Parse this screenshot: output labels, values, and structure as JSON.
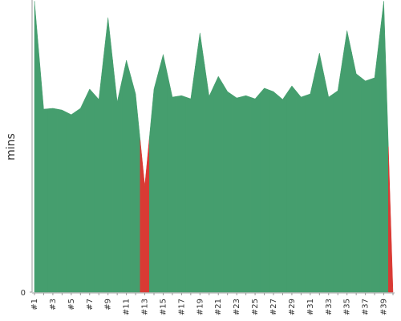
{
  "chart_data": {
    "type": "area",
    "y_label": "mins",
    "categories": [
      "#1",
      null,
      "#3",
      null,
      "#5",
      null,
      "#7",
      null,
      "#9",
      null,
      "#11",
      null,
      "#13",
      null,
      "#15",
      null,
      "#17",
      null,
      "#19",
      null,
      "#21",
      null,
      "#23",
      null,
      "#25",
      null,
      "#27",
      null,
      "#29",
      null,
      "#31",
      null,
      "#33",
      null,
      "#35",
      null,
      "#37",
      null,
      "#39",
      null
    ],
    "values": [
      101,
      63.5,
      63.8,
      63.2,
      61.6,
      63.8,
      70.5,
      66.9,
      95.3,
      66.0,
      80.5,
      68.8,
      36.8,
      70.5,
      82.5,
      67.7,
      68.2,
      67.1,
      90.0,
      68.0,
      74.9,
      69.6,
      67.4,
      68.2,
      67.1,
      70.8,
      69.6,
      66.9,
      71.6,
      67.7,
      68.8,
      83.0,
      67.7,
      69.9,
      90.8,
      75.8,
      73.3,
      74.4,
      101,
      0
    ],
    "colors": [
      "#459e6e",
      "#459e6e",
      "#459e6e",
      "#459e6e",
      "#459e6e",
      "#459e6e",
      "#459e6e",
      "#459e6e",
      "#459e6e",
      "#459e6e",
      "#459e6e",
      "#459e6e",
      "#d93a34",
      "#459e6e",
      "#459e6e",
      "#459e6e",
      "#459e6e",
      "#459e6e",
      "#459e6e",
      "#459e6e",
      "#459e6e",
      "#459e6e",
      "#459e6e",
      "#459e6e",
      "#459e6e",
      "#459e6e",
      "#459e6e",
      "#459e6e",
      "#459e6e",
      "#459e6e",
      "#459e6e",
      "#459e6e",
      "#459e6e",
      "#459e6e",
      "#459e6e",
      "#459e6e",
      "#459e6e",
      "#459e6e",
      "#459e6e",
      "#d93a34"
    ],
    "ylim": [
      0,
      100
    ],
    "yticks": [
      0
    ]
  }
}
